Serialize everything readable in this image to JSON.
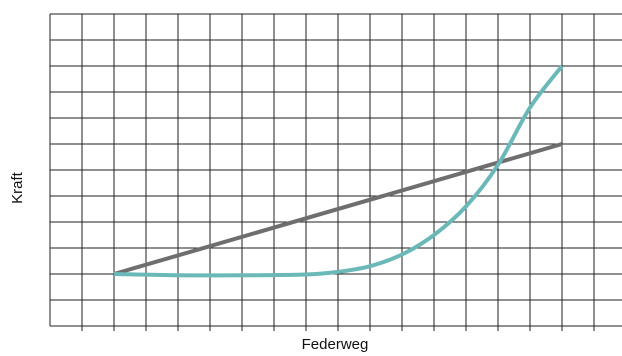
{
  "chart_data": {
    "type": "line",
    "title": "",
    "xlabel": "Federweg",
    "ylabel": "Kraft",
    "xlim": [
      0,
      17.5
    ],
    "ylim": [
      0,
      12
    ],
    "grid": true,
    "x_tick_labels_shown": false,
    "y_tick_labels_shown": false,
    "series": [
      {
        "name": "",
        "color": "#6e6e6e",
        "x": [
          2,
          16
        ],
        "y": [
          2,
          7
        ]
      },
      {
        "name": "",
        "color": "#6ab8b8",
        "x": [
          2,
          4,
          6,
          8,
          9,
          10,
          11,
          12,
          13,
          14,
          15,
          16
        ],
        "y": [
          2,
          1.95,
          1.95,
          1.98,
          2.08,
          2.3,
          2.75,
          3.5,
          4.6,
          6.2,
          8.4,
          10
        ]
      }
    ]
  }
}
